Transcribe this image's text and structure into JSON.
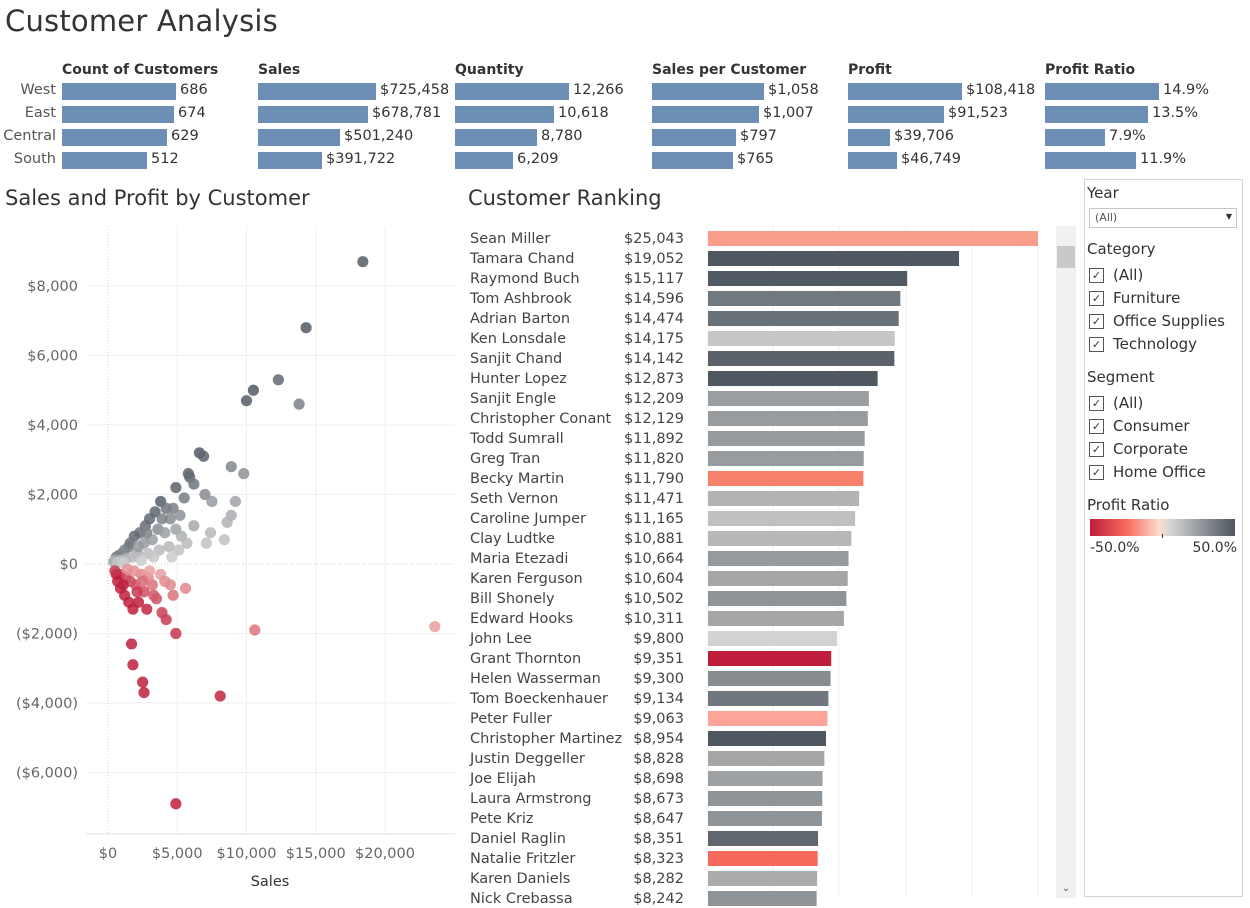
{
  "title": "Customer Analysis",
  "kpi": {
    "regions": [
      "West",
      "East",
      "Central",
      "South"
    ],
    "metrics": [
      {
        "name": "Count of Customers",
        "values": [
          686,
          674,
          629,
          512
        ],
        "labels": [
          "686",
          "674",
          "629",
          "512"
        ]
      },
      {
        "name": "Sales",
        "values": [
          725458,
          678781,
          501240,
          391722
        ],
        "labels": [
          "$725,458",
          "$678,781",
          "$501,240",
          "$391,722"
        ]
      },
      {
        "name": "Quantity",
        "values": [
          12266,
          10618,
          8780,
          6209
        ],
        "labels": [
          "12,266",
          "10,618",
          "8,780",
          "6,209"
        ]
      },
      {
        "name": "Sales per Customer",
        "values": [
          1058,
          1007,
          797,
          765
        ],
        "labels": [
          "$1,058",
          "$1,007",
          "$797",
          "$765"
        ]
      },
      {
        "name": "Profit",
        "values": [
          108418,
          91523,
          39706,
          46749
        ],
        "labels": [
          "$108,418",
          "$91,523",
          "$39,706",
          "$46,749"
        ]
      },
      {
        "name": "Profit Ratio",
        "values": [
          14.9,
          13.5,
          7.9,
          11.9
        ],
        "labels": [
          "14.9%",
          "13.5%",
          "7.9%",
          "11.9%"
        ]
      }
    ]
  },
  "scatter_title": "Sales and Profit by Customer",
  "ranking_title": "Customer Ranking",
  "filters": {
    "year": {
      "title": "Year",
      "value": "(All)"
    },
    "category": {
      "title": "Category",
      "items": [
        "(All)",
        "Furniture",
        "Office Supplies",
        "Technology"
      ]
    },
    "segment": {
      "title": "Segment",
      "items": [
        "(All)",
        "Consumer",
        "Corporate",
        "Home Office"
      ]
    },
    "checkmark": "✓",
    "legend": {
      "title": "Profit Ratio",
      "min_label": "-50.0%",
      "max_label": "50.0%"
    }
  },
  "icons": {
    "dropdown": "caret-down-icon",
    "scroll_up": "chevron-up-icon",
    "scroll_down": "chevron-down-icon",
    "scroll_up_glyph": "",
    "scroll_down_glyph": "⌄"
  },
  "colors": {
    "bar": "#6d8fb5",
    "neg_strong": "#be1e3c",
    "neg_light": "#fddcd0",
    "pos_strong": "#4e5660",
    "pos_light": "#d6d6d6"
  },
  "chart_data": [
    {
      "type": "scatter",
      "title": "Sales and Profit by Customer",
      "xlabel": "Sales",
      "ylabel": "",
      "xlim": [
        -1500,
        25000
      ],
      "ylim": [
        -8000,
        9000
      ],
      "xticks": [
        0,
        5000,
        10000,
        15000,
        20000
      ],
      "xtick_labels": [
        "$0",
        "$5,000",
        "$10,000",
        "$15,000",
        "$20,000"
      ],
      "yticks": [
        -6000,
        -4000,
        -2000,
        0,
        2000,
        4000,
        6000,
        8000
      ],
      "ytick_labels": [
        "($6,000)",
        "($4,000)",
        "($2,000)",
        "$0",
        "$2,000",
        "$4,000",
        "$6,000",
        "$8,000"
      ],
      "grid": true,
      "color_encoding": "profit ratio",
      "points": [
        [
          18400,
          8700,
          0.47
        ],
        [
          14300,
          6800,
          0.48
        ],
        [
          12300,
          5300,
          0.43
        ],
        [
          10500,
          5000,
          0.48
        ],
        [
          10000,
          4700,
          0.47
        ],
        [
          13800,
          4600,
          0.33
        ],
        [
          6600,
          3200,
          0.48
        ],
        [
          6900,
          3100,
          0.45
        ],
        [
          5800,
          2600,
          0.45
        ],
        [
          5900,
          2500,
          0.42
        ],
        [
          8900,
          2800,
          0.31
        ],
        [
          9800,
          2600,
          0.27
        ],
        [
          4900,
          2200,
          0.45
        ],
        [
          7000,
          2000,
          0.29
        ],
        [
          7500,
          1800,
          0.24
        ],
        [
          9200,
          1800,
          0.2
        ],
        [
          8900,
          1400,
          0.16
        ],
        [
          8600,
          1200,
          0.14
        ],
        [
          6200,
          1100,
          0.18
        ],
        [
          7400,
          900,
          0.12
        ],
        [
          8400,
          700,
          0.08
        ],
        [
          7100,
          600,
          0.08
        ],
        [
          3800,
          1800,
          0.47
        ],
        [
          4200,
          1600,
          0.38
        ],
        [
          4500,
          1300,
          0.29
        ],
        [
          3400,
          1500,
          0.44
        ],
        [
          3000,
          1300,
          0.43
        ],
        [
          2700,
          1100,
          0.41
        ],
        [
          2300,
          900,
          0.39
        ],
        [
          1900,
          800,
          0.42
        ],
        [
          3600,
          1000,
          0.28
        ],
        [
          4100,
          900,
          0.22
        ],
        [
          4900,
          1000,
          0.2
        ],
        [
          5300,
          800,
          0.15
        ],
        [
          5700,
          600,
          0.11
        ],
        [
          3200,
          700,
          0.22
        ],
        [
          2600,
          600,
          0.23
        ],
        [
          4400,
          500,
          0.11
        ],
        [
          5100,
          400,
          0.08
        ],
        [
          3700,
          400,
          0.11
        ],
        [
          1500,
          500,
          0.33
        ],
        [
          1200,
          400,
          0.33
        ],
        [
          1000,
          300,
          0.3
        ],
        [
          800,
          250,
          0.31
        ],
        [
          600,
          200,
          0.33
        ],
        [
          500,
          100,
          0.2
        ],
        [
          400,
          60,
          0.15
        ],
        [
          2100,
          300,
          0.14
        ],
        [
          2900,
          300,
          0.1
        ],
        [
          1800,
          200,
          0.11
        ],
        [
          1300,
          150,
          0.12
        ],
        [
          3300,
          200,
          0.06
        ],
        [
          2400,
          100,
          0.04
        ],
        [
          4600,
          200,
          0.04
        ],
        [
          1600,
          600,
          0.37
        ],
        [
          2200,
          500,
          0.23
        ],
        [
          2800,
          900,
          0.32
        ],
        [
          3900,
          1300,
          0.33
        ],
        [
          4700,
          1600,
          0.34
        ],
        [
          5500,
          1900,
          0.35
        ],
        [
          6200,
          2300,
          0.37
        ],
        [
          5200,
          1400,
          0.27
        ],
        [
          900,
          100,
          0.11
        ],
        [
          700,
          50,
          0.07
        ],
        [
          1100,
          40,
          0.04
        ],
        [
          23600,
          -1800,
          -0.08
        ],
        [
          10600,
          -1900,
          -0.18
        ],
        [
          8100,
          -3800,
          -0.47
        ],
        [
          4900,
          -6900,
          -1.4
        ],
        [
          1700,
          -2300,
          -1.35
        ],
        [
          1800,
          -2900,
          -1.6
        ],
        [
          2500,
          -3400,
          -1.36
        ],
        [
          2600,
          -3700,
          -1.42
        ],
        [
          4900,
          -2000,
          -0.41
        ],
        [
          4200,
          -1600,
          -0.38
        ],
        [
          3900,
          -1400,
          -0.36
        ],
        [
          3500,
          -1000,
          -0.29
        ],
        [
          4700,
          -900,
          -0.19
        ],
        [
          5600,
          -700,
          -0.13
        ],
        [
          4500,
          -600,
          -0.13
        ],
        [
          3200,
          -600,
          -0.19
        ],
        [
          2600,
          -800,
          -0.31
        ],
        [
          2200,
          -1100,
          -0.5
        ],
        [
          1800,
          -1300,
          -0.72
        ],
        [
          1500,
          -1100,
          -0.73
        ],
        [
          1200,
          -900,
          -0.75
        ],
        [
          900,
          -700,
          -0.78
        ],
        [
          2000,
          -600,
          -0.3
        ],
        [
          1600,
          -500,
          -0.31
        ],
        [
          1300,
          -400,
          -0.31
        ],
        [
          900,
          -300,
          -0.33
        ],
        [
          600,
          -300,
          -0.5
        ],
        [
          500,
          -200,
          -0.4
        ],
        [
          2900,
          -400,
          -0.14
        ],
        [
          3800,
          -300,
          -0.08
        ],
        [
          2400,
          -300,
          -0.13
        ],
        [
          1900,
          -200,
          -0.11
        ],
        [
          1400,
          -150,
          -0.11
        ],
        [
          3300,
          -900,
          -0.27
        ],
        [
          2800,
          -1300,
          -0.46
        ],
        [
          700,
          -500,
          -0.71
        ],
        [
          1100,
          -600,
          -0.55
        ],
        [
          2100,
          -800,
          -0.38
        ],
        [
          2500,
          -500,
          -0.2
        ],
        [
          3000,
          -200,
          -0.07
        ],
        [
          4100,
          -500,
          -0.12
        ]
      ]
    },
    {
      "type": "bar",
      "title": "Customer Ranking",
      "orientation": "horizontal",
      "xlim": [
        0,
        25043
      ],
      "categories": [
        "Sean Miller",
        "Tamara Chand",
        "Raymond Buch",
        "Tom Ashbrook",
        "Adrian Barton",
        "Ken Lonsdale",
        "Sanjit Chand",
        "Hunter Lopez",
        "Sanjit Engle",
        "Christopher Conant",
        "Todd Sumrall",
        "Greg Tran",
        "Becky Martin",
        "Seth Vernon",
        "Caroline Jumper",
        "Clay Ludtke",
        "Maria Etezadi",
        "Karen Ferguson",
        "Bill Shonely",
        "Edward Hooks",
        "John Lee",
        "Grant Thornton",
        "Helen Wasserman",
        "Tom Boeckenhauer",
        "Peter Fuller",
        "Christopher Martinez",
        "Justin Deggeller",
        "Joe Elijah",
        "Laura Armstrong",
        "Pete Kriz",
        "Daniel Raglin",
        "Natalie Fritzler",
        "Karen Daniels",
        "Nick Crebassa"
      ],
      "values": [
        25043,
        19052,
        15117,
        14596,
        14474,
        14175,
        14142,
        12873,
        12209,
        12129,
        11892,
        11820,
        11790,
        11471,
        11165,
        10881,
        10664,
        10604,
        10502,
        10311,
        9800,
        9351,
        9300,
        9134,
        9063,
        8954,
        8828,
        8698,
        8673,
        8647,
        8351,
        8323,
        8282,
        8242
      ],
      "labels": [
        "$25,043",
        "$19,052",
        "$15,117",
        "$14,596",
        "$14,474",
        "$14,175",
        "$14,142",
        "$12,873",
        "$12,209",
        "$12,129",
        "$11,892",
        "$11,820",
        "$11,790",
        "$11,471",
        "$11,165",
        "$10,881",
        "$10,664",
        "$10,604",
        "$10,502",
        "$10,311",
        "$9,800",
        "$9,351",
        "$9,300",
        "$9,134",
        "$9,063",
        "$8,954",
        "$8,828",
        "$8,698",
        "$8,673",
        "$8,647",
        "$8,351",
        "$8,323",
        "$8,282",
        "$8,242"
      ],
      "bar_colors": [
        "#f99e8b",
        "#4f5761",
        "#515962",
        "#717980",
        "#6a7279",
        "#c6c6c6",
        "#5b6269",
        "#4f5761",
        "#9a9ea1",
        "#989c9f",
        "#979b9e",
        "#989c9f",
        "#f7806b",
        "#b3b3b3",
        "#c0c0c0",
        "#b7b7b7",
        "#959a9d",
        "#a4a6a8",
        "#8f9498",
        "#a4a6a8",
        "#d2d2d2",
        "#be1e3c",
        "#878c91",
        "#70777e",
        "#fba497",
        "#4f5761",
        "#a4a6a8",
        "#9ea1a4",
        "#8f9498",
        "#8f9498",
        "#60676e",
        "#f56a5b",
        "#a9abad",
        "#8f9498"
      ]
    }
  ]
}
